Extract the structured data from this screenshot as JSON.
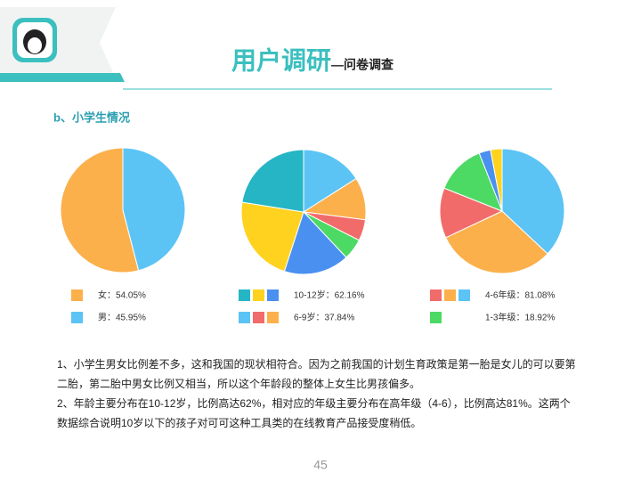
{
  "header": {
    "title": "用户调研",
    "subtitle": "—问卷调查"
  },
  "section": "b、小学生情况",
  "chart_data": [
    {
      "type": "pie",
      "values": [
        45.95,
        54.05
      ],
      "colors": [
        "#5bc4f5",
        "#fbb04c"
      ],
      "legend": [
        {
          "label": "女：54.05%",
          "colors": [
            "#fbb04c"
          ]
        },
        {
          "label": "男：45.95%",
          "colors": [
            "#5bc4f5"
          ]
        }
      ]
    },
    {
      "type": "pie",
      "values": [
        16,
        11,
        5.5,
        5.5,
        17,
        22.5,
        22.5
      ],
      "colors": [
        "#5bc4f5",
        "#fbb04c",
        "#f26b6b",
        "#4cd964",
        "#4a90f0",
        "#ffd21f",
        "#26b5c5"
      ],
      "legend": [
        {
          "label": "10-12岁：62.16%",
          "colors": [
            "#26b5c5",
            "#ffd21f",
            "#4a90f0"
          ]
        },
        {
          "label": "6-9岁：37.84%",
          "colors": [
            "#5bc4f5",
            "#f26b6b",
            "#fbb04c"
          ]
        }
      ]
    },
    {
      "type": "pie",
      "values": [
        37,
        31,
        13,
        13,
        3,
        3
      ],
      "colors": [
        "#5bc4f5",
        "#fbb04c",
        "#f26b6b",
        "#4cd964",
        "#4a90f0",
        "#ffd21f"
      ],
      "legend": [
        {
          "label": "4-6年级：81.08%",
          "colors": [
            "#f26b6b",
            "#fbb04c",
            "#5bc4f5"
          ]
        },
        {
          "label": "1-3年级：18.92%",
          "colors": [
            "#4cd964"
          ]
        }
      ]
    }
  ],
  "paragraphs": [
    "1、小学生男女比例差不多，这和我国的现状相符合。因为之前我国的计划生育政策是第一胎是女儿的可以要第",
    "二胎，第二胎中男女比例又相当，所以这个年龄段的整体上女生比男孩偏多。",
    "2、年龄主要分布在10-12岁，比例高达62%，相对应的年级主要分布在高年级（4-6），比例高达81%。这两个",
    "数据综合说明10岁以下的孩子对可可这种工具类的在线教育产品接受度稍低。"
  ],
  "page_number": "45"
}
